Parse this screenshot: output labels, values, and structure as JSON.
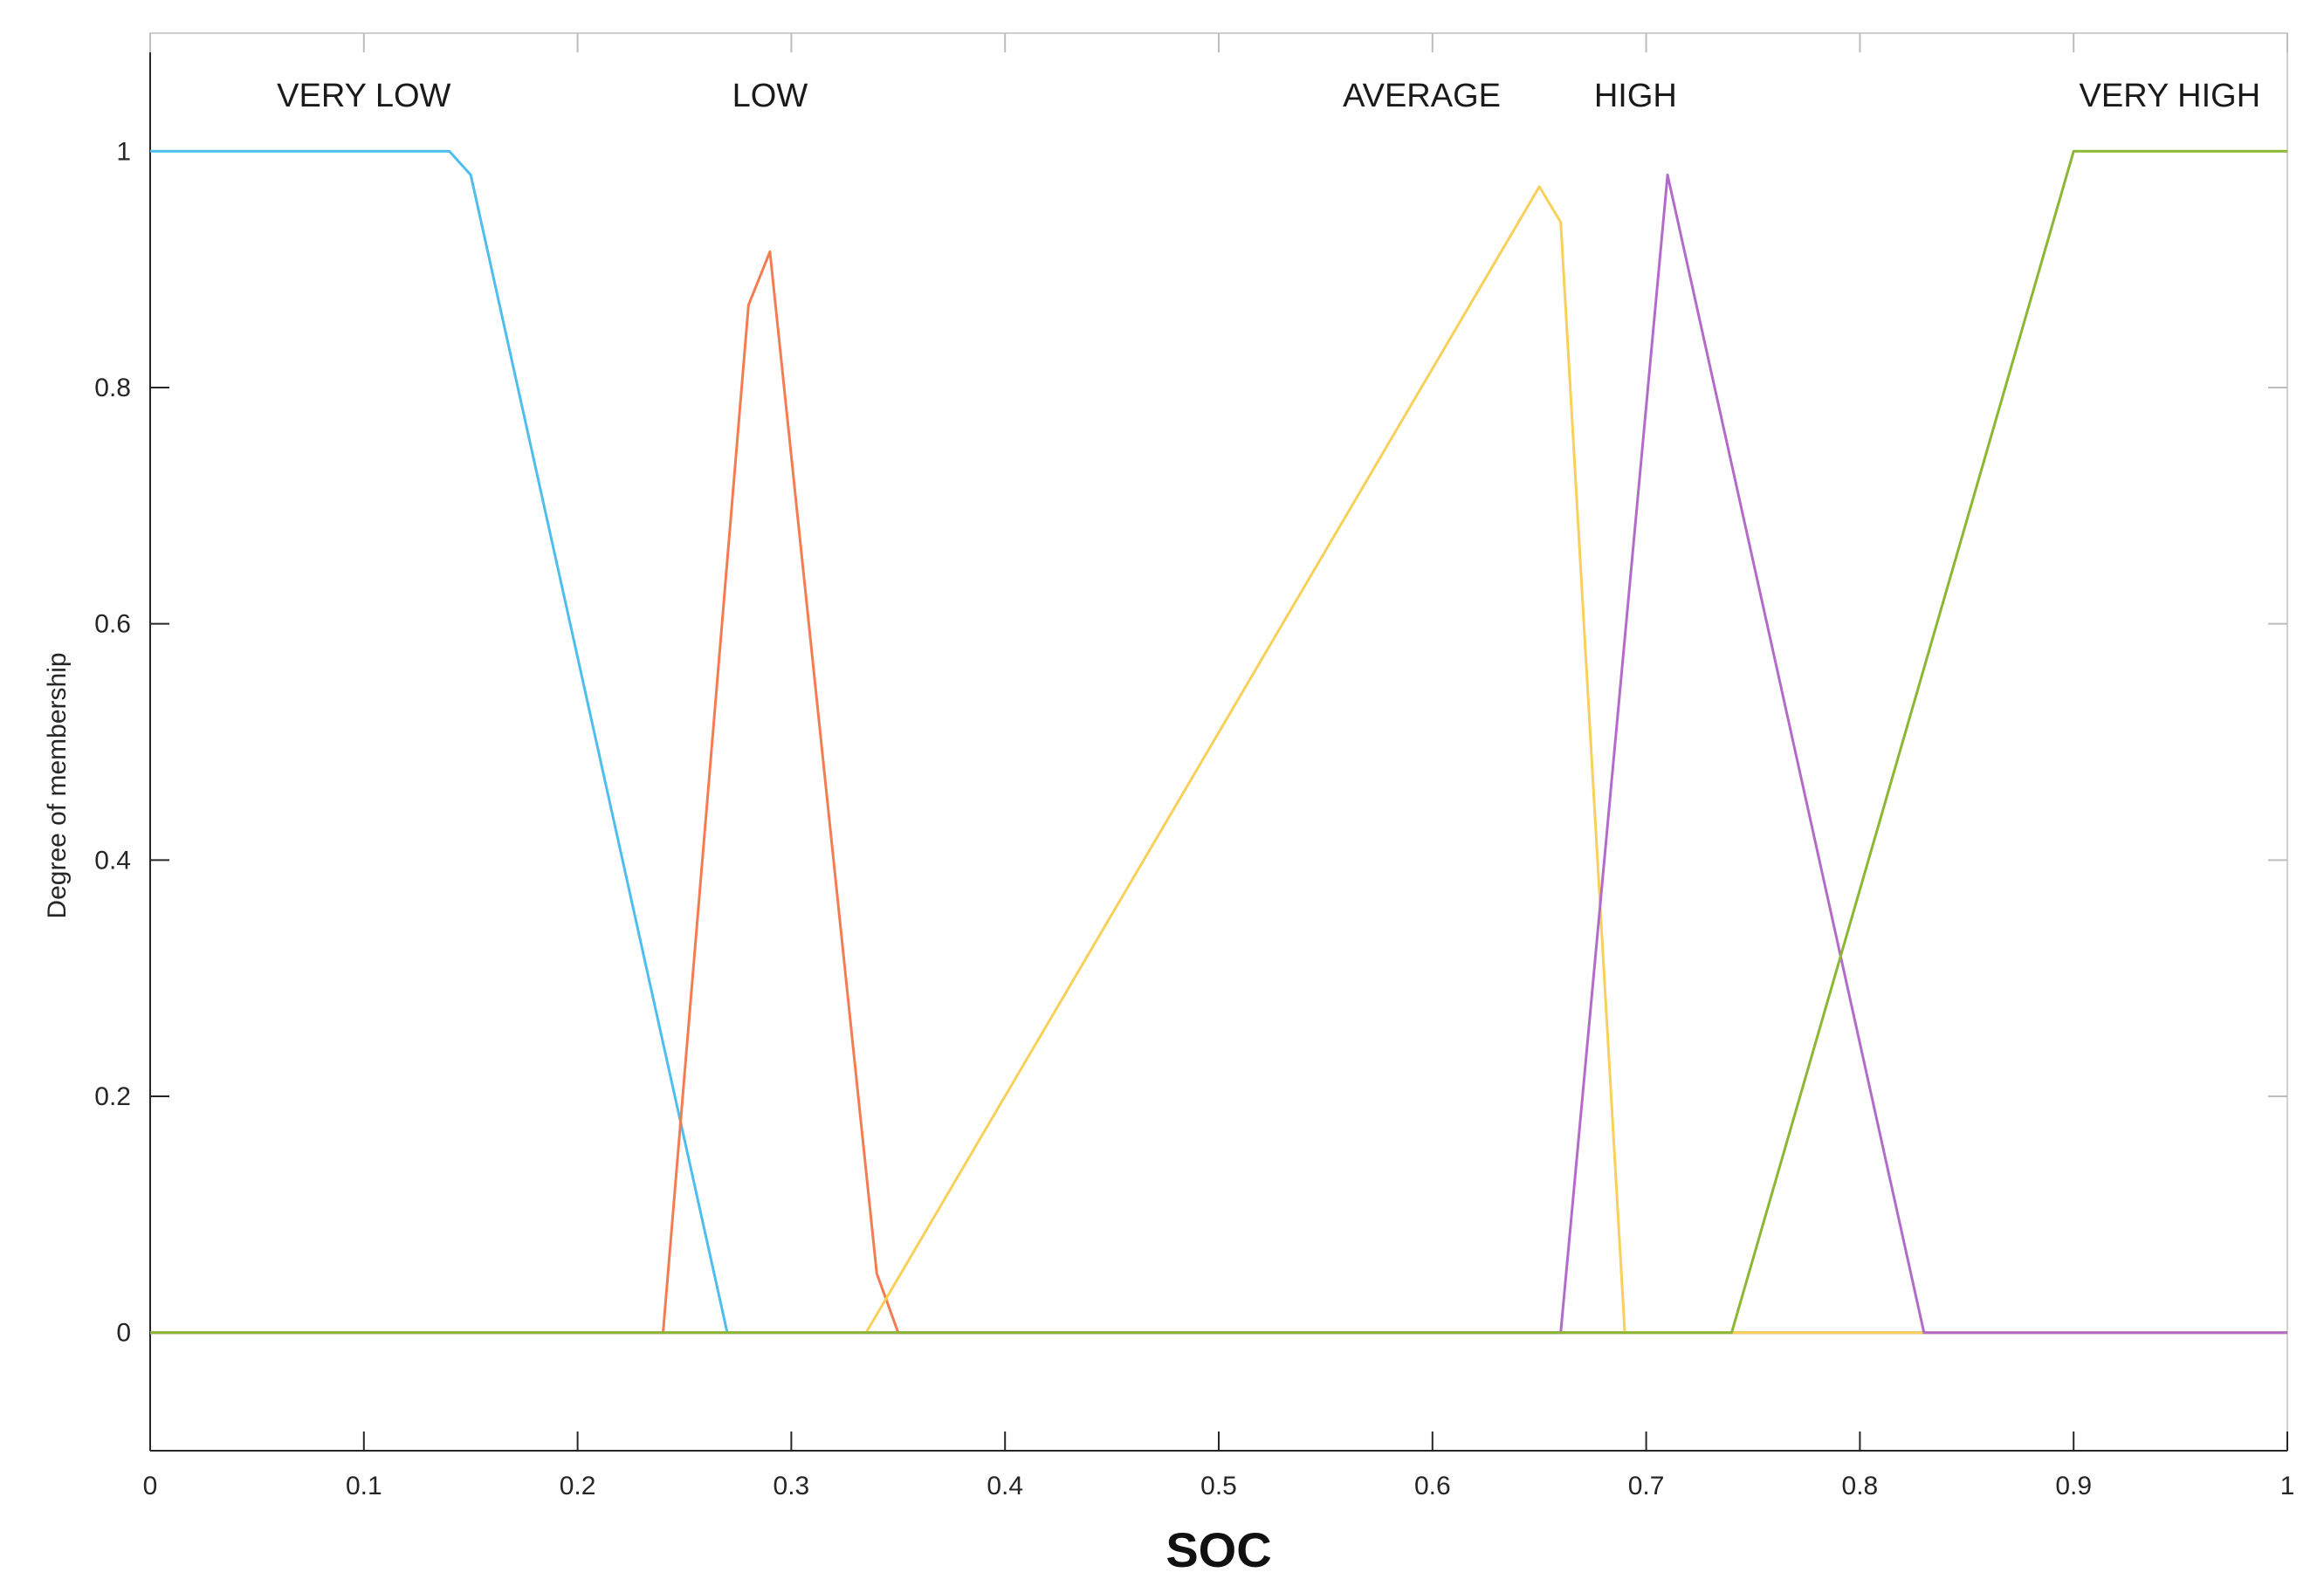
{
  "chart_data": {
    "type": "line",
    "title": "",
    "xlabel": "SOC",
    "ylabel": "Degree of membership",
    "xlim": [
      0,
      1
    ],
    "ylim": [
      -0.1,
      1.1
    ],
    "x_ticks": [
      0,
      0.1,
      0.2,
      0.3,
      0.4,
      0.5,
      0.6,
      0.7,
      0.8,
      0.9,
      1
    ],
    "x_tick_labels": [
      "0",
      "0.1",
      "0.2",
      "0.3",
      "0.4",
      "0.5",
      "0.6",
      "0.7",
      "0.8",
      "0.9",
      "1"
    ],
    "y_ticks": [
      0,
      0.2,
      0.4,
      0.6,
      0.8,
      1
    ],
    "y_tick_labels": [
      "0",
      "0.2",
      "0.4",
      "0.6",
      "0.8",
      "1"
    ],
    "grid": false,
    "legend": "none",
    "series": [
      {
        "name": "VERY LOW",
        "color": "#4dbeee",
        "label_x": 0.1,
        "x": [
          0,
          0.14,
          0.15,
          0.27,
          1
        ],
        "y": [
          1,
          1,
          0.98,
          0,
          0
        ]
      },
      {
        "name": "LOW",
        "color": "#f47c52",
        "label_x": 0.29,
        "x": [
          0,
          0.24,
          0.28,
          0.29,
          0.34,
          0.35,
          1
        ],
        "y": [
          0,
          0,
          0.87,
          0.915,
          0.05,
          0,
          0
        ]
      },
      {
        "name": "AVERAGE",
        "color": "#f9d05a",
        "label_x": 0.595,
        "x": [
          0,
          0.335,
          0.65,
          0.66,
          0.69,
          1
        ],
        "y": [
          0,
          0,
          0.97,
          0.94,
          0,
          0
        ]
      },
      {
        "name": "HIGH",
        "color": "#b36bc9",
        "label_x": 0.695,
        "x": [
          0,
          0.66,
          0.71,
          0.83,
          1
        ],
        "y": [
          0,
          0,
          0.98,
          0,
          0
        ]
      },
      {
        "name": "VERY HIGH",
        "color": "#8bb734",
        "label_x": 0.945,
        "x": [
          0,
          0.74,
          0.9,
          1
        ],
        "y": [
          0,
          0,
          1,
          1
        ]
      }
    ]
  }
}
